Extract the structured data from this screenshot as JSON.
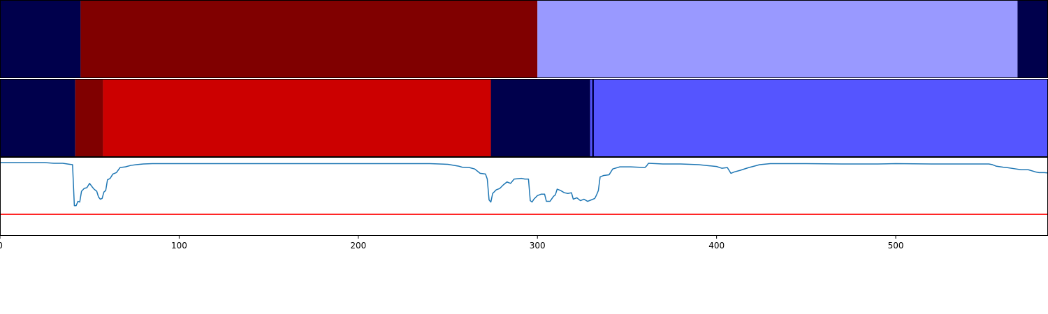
{
  "chart_data": {
    "type": "composite",
    "xlim": [
      0,
      585
    ],
    "x_ticks": [
      0,
      100,
      200,
      300,
      400,
      500
    ],
    "x_tick_labels": [
      "0",
      "100",
      "200",
      "300",
      "400",
      "500"
    ],
    "segment_tracks": [
      {
        "segments": [
          {
            "start": 0,
            "end": 45,
            "color": "#00004c"
          },
          {
            "start": 45,
            "end": 300,
            "color": "#800000"
          },
          {
            "start": 300,
            "end": 568,
            "color": "#9999ff"
          },
          {
            "start": 568,
            "end": 585,
            "color": "#00004c"
          }
        ]
      },
      {
        "segments": [
          {
            "start": 0,
            "end": 42,
            "color": "#00004c"
          },
          {
            "start": 42,
            "end": 57.5,
            "color": "#800000"
          },
          {
            "start": 57.5,
            "end": 274,
            "color": "#cc0000"
          },
          {
            "start": 274,
            "end": 329.5,
            "color": "#00004c"
          },
          {
            "start": 329.5,
            "end": 330.5,
            "color": "#5555ff"
          },
          {
            "start": 330.5,
            "end": 331.5,
            "color": "#00004c"
          },
          {
            "start": 331.5,
            "end": 585,
            "color": "#5555ff"
          }
        ]
      }
    ],
    "line": {
      "color": "#1f77b4",
      "ylim": [
        0,
        1
      ],
      "points": [
        [
          0,
          1.02
        ],
        [
          25,
          1.02
        ],
        [
          30,
          1.01
        ],
        [
          35,
          1.01
        ],
        [
          39,
          0.995
        ],
        [
          40.5,
          0.99
        ],
        [
          41.5,
          0.42
        ],
        [
          42.5,
          0.42
        ],
        [
          43.5,
          0.48
        ],
        [
          44.5,
          0.47
        ],
        [
          45.5,
          0.62
        ],
        [
          47,
          0.66
        ],
        [
          48.5,
          0.67
        ],
        [
          50,
          0.73
        ],
        [
          51.5,
          0.68
        ],
        [
          52.5,
          0.65
        ],
        [
          54,
          0.62
        ],
        [
          55,
          0.54
        ],
        [
          56,
          0.51
        ],
        [
          57,
          0.52
        ],
        [
          58,
          0.61
        ],
        [
          59,
          0.63
        ],
        [
          60,
          0.78
        ],
        [
          61.5,
          0.8
        ],
        [
          63,
          0.86
        ],
        [
          65,
          0.88
        ],
        [
          67,
          0.95
        ],
        [
          70,
          0.96
        ],
        [
          73,
          0.98
        ],
        [
          76,
          0.99
        ],
        [
          80,
          1.0
        ],
        [
          85,
          1.005
        ],
        [
          100,
          1.005
        ],
        [
          150,
          1.005
        ],
        [
          200,
          1.005
        ],
        [
          240,
          1.005
        ],
        [
          250,
          0.995
        ],
        [
          256,
          0.97
        ],
        [
          258,
          0.955
        ],
        [
          262,
          0.95
        ],
        [
          265,
          0.93
        ],
        [
          268,
          0.87
        ],
        [
          271,
          0.86
        ],
        [
          272,
          0.79
        ],
        [
          273,
          0.5
        ],
        [
          274,
          0.47
        ],
        [
          275,
          0.59
        ],
        [
          277,
          0.64
        ],
        [
          279,
          0.66
        ],
        [
          281,
          0.71
        ],
        [
          283,
          0.75
        ],
        [
          285,
          0.73
        ],
        [
          287,
          0.79
        ],
        [
          291,
          0.8
        ],
        [
          293,
          0.79
        ],
        [
          295,
          0.79
        ],
        [
          296,
          0.49
        ],
        [
          297,
          0.47
        ],
        [
          298,
          0.51
        ],
        [
          300,
          0.56
        ],
        [
          302,
          0.58
        ],
        [
          304,
          0.58
        ],
        [
          305,
          0.48
        ],
        [
          307,
          0.48
        ],
        [
          309,
          0.55
        ],
        [
          310,
          0.57
        ],
        [
          311,
          0.65
        ],
        [
          313,
          0.63
        ],
        [
          315,
          0.6
        ],
        [
          317,
          0.59
        ],
        [
          319,
          0.6
        ],
        [
          320,
          0.51
        ],
        [
          322,
          0.53
        ],
        [
          324,
          0.49
        ],
        [
          326,
          0.51
        ],
        [
          328,
          0.48
        ],
        [
          330,
          0.5
        ],
        [
          332,
          0.52
        ],
        [
          333,
          0.57
        ],
        [
          334,
          0.63
        ],
        [
          335,
          0.82
        ],
        [
          337,
          0.84
        ],
        [
          340,
          0.85
        ],
        [
          342,
          0.93
        ],
        [
          346,
          0.96
        ],
        [
          352,
          0.96
        ],
        [
          360,
          0.95
        ],
        [
          361,
          0.975
        ],
        [
          362,
          1.01
        ],
        [
          370,
          1.0
        ],
        [
          380,
          1.0
        ],
        [
          390,
          0.99
        ],
        [
          396,
          0.975
        ],
        [
          400,
          0.965
        ],
        [
          403,
          0.94
        ],
        [
          406,
          0.95
        ],
        [
          408,
          0.87
        ],
        [
          410,
          0.89
        ],
        [
          413,
          0.91
        ],
        [
          418,
          0.95
        ],
        [
          421,
          0.97
        ],
        [
          424,
          0.99
        ],
        [
          430,
          1.005
        ],
        [
          450,
          1.005
        ],
        [
          470,
          1.0
        ],
        [
          480,
          1.0
        ],
        [
          490,
          1.0
        ],
        [
          500,
          1.005
        ],
        [
          520,
          1.0
        ],
        [
          540,
          1.0
        ],
        [
          552,
          1.0
        ],
        [
          554,
          0.99
        ],
        [
          556,
          0.97
        ],
        [
          560,
          0.955
        ],
        [
          562,
          0.95
        ],
        [
          566,
          0.935
        ],
        [
          570,
          0.92
        ],
        [
          574,
          0.92
        ],
        [
          578,
          0.89
        ],
        [
          580,
          0.88
        ],
        [
          583,
          0.88
        ],
        [
          585,
          0.875
        ]
      ]
    },
    "threshold": {
      "y": 0.3,
      "color": "#ff0000"
    }
  }
}
